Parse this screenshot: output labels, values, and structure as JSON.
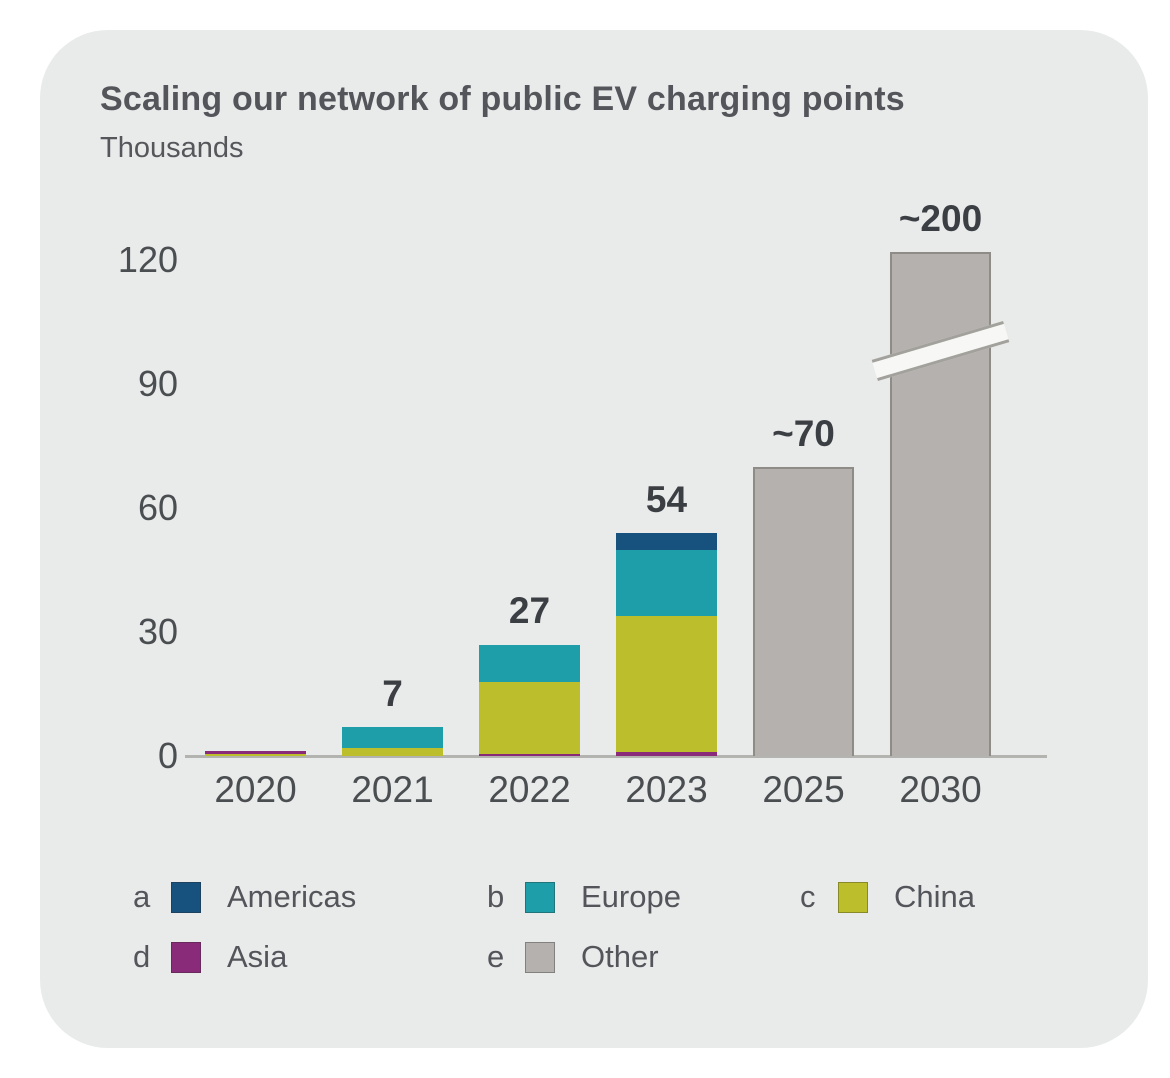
{
  "card": {
    "title": "Scaling our network of public EV charging points",
    "unit_label": "Thousands"
  },
  "chart_data": {
    "type": "bar",
    "stacked": true,
    "title": "Scaling our network of public EV charging points",
    "ylabel": "Thousands",
    "grid": false,
    "legend_position": "bottom",
    "categories": [
      "2020",
      "2021",
      "2022",
      "2023",
      "2025",
      "2030"
    ],
    "yticks": [
      0,
      30,
      60,
      90,
      120
    ],
    "ylim": [
      0,
      130
    ],
    "series": [
      {
        "name": "Americas",
        "color": "#17517e",
        "values": [
          0,
          0,
          0,
          4,
          0,
          0
        ]
      },
      {
        "name": "Europe",
        "color": "#1d9ea8",
        "values": [
          0,
          5,
          9,
          16,
          0,
          0
        ]
      },
      {
        "name": "China",
        "color": "#bcbf2b",
        "values": [
          0.6,
          2,
          17.5,
          33,
          0,
          0
        ]
      },
      {
        "name": "Asia",
        "color": "#8a2b79",
        "values": [
          0.6,
          0,
          0.5,
          1,
          0,
          0
        ]
      },
      {
        "name": "Other",
        "color": "#b4b1ae",
        "values": [
          0,
          0,
          0,
          0,
          70,
          200
        ]
      }
    ],
    "bars": [
      {
        "category": "2020",
        "total": 1,
        "total_label": "",
        "segments": [
          {
            "series": "China",
            "value": 0.6,
            "color": "#bcbf2b"
          },
          {
            "series": "Asia",
            "value": 0.6,
            "color": "#8a2b79"
          }
        ]
      },
      {
        "category": "2021",
        "total": 7,
        "total_label": "7",
        "segments": [
          {
            "series": "China",
            "value": 2,
            "color": "#bcbf2b"
          },
          {
            "series": "Europe",
            "value": 5,
            "color": "#1d9ea8"
          }
        ]
      },
      {
        "category": "2022",
        "total": 27,
        "total_label": "27",
        "segments": [
          {
            "series": "Asia",
            "value": 0.5,
            "color": "#8a2b79"
          },
          {
            "series": "China",
            "value": 17.5,
            "color": "#bcbf2b"
          },
          {
            "series": "Europe",
            "value": 9,
            "color": "#1d9ea8"
          }
        ]
      },
      {
        "category": "2023",
        "total": 54,
        "total_label": "54",
        "segments": [
          {
            "series": "Asia",
            "value": 1,
            "color": "#8a2b79"
          },
          {
            "series": "China",
            "value": 33,
            "color": "#bcbf2b"
          },
          {
            "series": "Europe",
            "value": 16,
            "color": "#1d9ea8"
          },
          {
            "series": "Americas",
            "value": 4,
            "color": "#17517e"
          }
        ]
      },
      {
        "category": "2025",
        "total": 70,
        "total_label": "~70",
        "segments": [
          {
            "series": "Other",
            "value": 70,
            "color": "#b4b1ae"
          }
        ]
      },
      {
        "category": "2030",
        "total": 200,
        "total_label": "~200",
        "axis_break": true,
        "segments": [
          {
            "series": "Other",
            "value": 200,
            "display_value": 122,
            "color": "#b4b1ae"
          }
        ]
      }
    ],
    "axis_break": {
      "category": "2030",
      "actual_value": 200,
      "drawn_height_units": 122
    }
  },
  "legend": {
    "rows": [
      [
        {
          "letter": "a",
          "name": "Americas",
          "color": "#17517e"
        },
        {
          "letter": "b",
          "name": "Europe",
          "color": "#1d9ea8"
        },
        {
          "letter": "c",
          "name": "China",
          "color": "#bcbf2b"
        }
      ],
      [
        {
          "letter": "d",
          "name": "Asia",
          "color": "#8a2b79"
        },
        {
          "letter": "e",
          "name": "Other",
          "color": "#b4b1ae"
        }
      ]
    ]
  },
  "colors": {
    "card_background": "#e9ebeb",
    "page_background": "#ffffff",
    "title_text": "#53555a",
    "tick_text": "#4b4e51",
    "value_label_text": "#3b3e42",
    "axis_line": "#b3b3af"
  }
}
